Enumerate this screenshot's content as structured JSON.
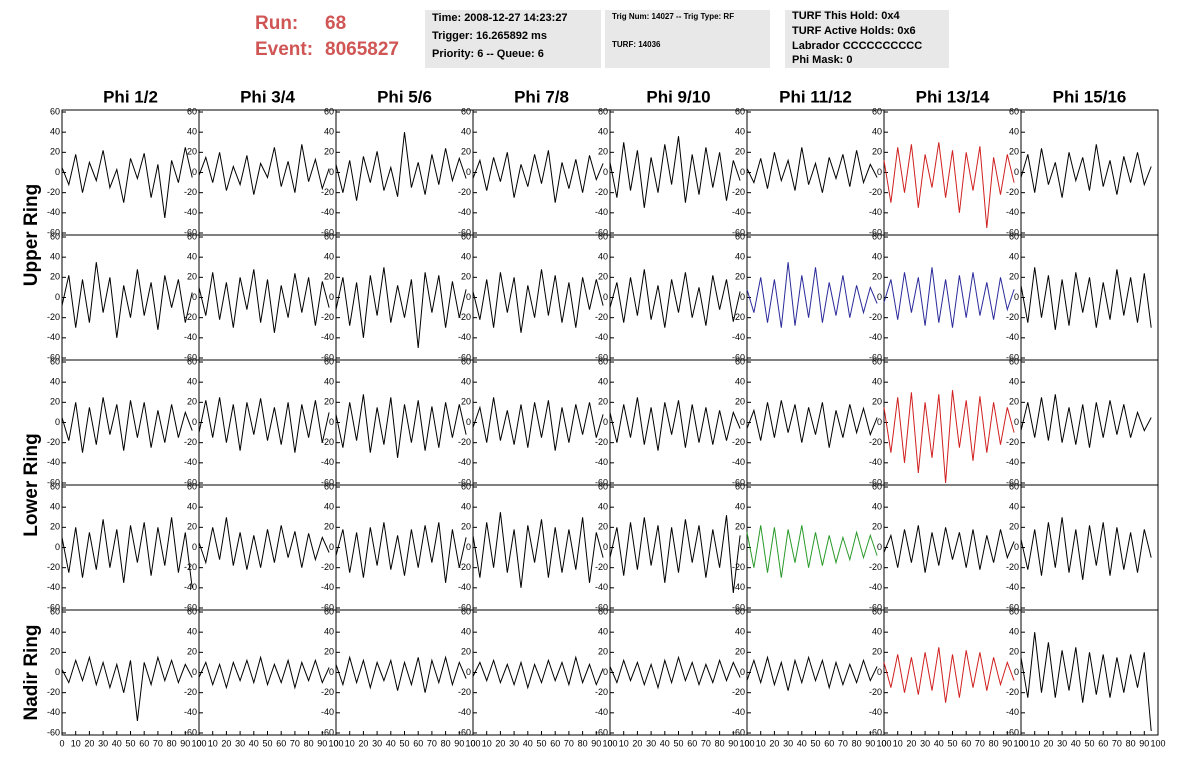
{
  "header": {
    "run_label": "Run:",
    "run": "68",
    "event_label": "Event:",
    "event": "8065827"
  },
  "info_boxes": [
    [
      "Time: 2008-12-27 14:23:27",
      "Trigger: 16.265892 ms",
      "Priority: 6 -- Queue: 6"
    ],
    [
      "Trig Num: 14027 -- Trig Type: RF",
      "TURF: 14036"
    ],
    [
      "TURF This Hold: 0x4",
      "TURF Active Holds: 0x6",
      "Labrador CCCCCCCCCC",
      "Phi Mask: 0"
    ]
  ],
  "columns": [
    "Phi 1/2",
    "Phi 3/4",
    "Phi 5/6",
    "Phi 7/8",
    "Phi 9/10",
    "Phi 11/12",
    "Phi 13/14",
    "Phi 15/16"
  ],
  "ring_labels": [
    "Upper Ring",
    "Lower Ring",
    "Nadir Ring"
  ],
  "axes": {
    "type": "line",
    "x": [
      0,
      5,
      10,
      15,
      20,
      25,
      30,
      35,
      40,
      45,
      50,
      55,
      60,
      65,
      70,
      75,
      80,
      85,
      90,
      95
    ],
    "xlim": [
      0,
      100
    ],
    "xticks": [
      0,
      10,
      20,
      30,
      40,
      50,
      60,
      70,
      80,
      90,
      100
    ],
    "ylim": [
      -62,
      62
    ],
    "yticks": [
      -60,
      -40,
      -20,
      0,
      20,
      40,
      60
    ]
  },
  "rows": [
    {
      "panels": [
        {
          "color": "#000000",
          "values": [
            5,
            -12,
            18,
            -20,
            10,
            -8,
            22,
            -15,
            3,
            -30,
            14,
            -6,
            19,
            -25,
            8,
            -45,
            12,
            -10,
            25,
            -5
          ]
        },
        {
          "color": "#000000",
          "values": [
            -3,
            15,
            -10,
            20,
            -18,
            6,
            -12,
            17,
            -22,
            9,
            -5,
            25,
            -14,
            11,
            -20,
            28,
            -9,
            13,
            -16,
            4
          ]
        },
        {
          "color": "#000000",
          "values": [
            8,
            -20,
            12,
            -28,
            16,
            -10,
            21,
            -18,
            5,
            -24,
            40,
            -15,
            10,
            -22,
            18,
            -12,
            24,
            -8,
            14,
            -6
          ]
        },
        {
          "color": "#000000",
          "values": [
            -6,
            12,
            -18,
            15,
            -9,
            20,
            -25,
            8,
            -14,
            18,
            -11,
            22,
            -30,
            10,
            -16,
            13,
            -20,
            17,
            -7,
            9
          ]
        },
        {
          "color": "#000000",
          "values": [
            10,
            -25,
            30,
            -18,
            22,
            -35,
            15,
            -20,
            28,
            -12,
            36,
            -30,
            18,
            -22,
            25,
            -15,
            20,
            -28,
            12,
            -8
          ]
        },
        {
          "color": "#000000",
          "values": [
            4,
            -10,
            14,
            -16,
            20,
            -8,
            12,
            -18,
            25,
            -12,
            9,
            -20,
            15,
            -6,
            18,
            -14,
            22,
            -10,
            8,
            -5
          ]
        },
        {
          "color": "#d02020",
          "values": [
            12,
            -30,
            25,
            -20,
            28,
            -35,
            18,
            -15,
            30,
            -25,
            22,
            -40,
            20,
            -18,
            26,
            -55,
            15,
            -22,
            18,
            -10
          ]
        },
        {
          "color": "#000000",
          "values": [
            -5,
            18,
            -20,
            24,
            -12,
            10,
            -25,
            20,
            -8,
            15,
            -18,
            28,
            -14,
            12,
            -22,
            16,
            -10,
            20,
            -12,
            6
          ]
        }
      ]
    },
    {
      "panels": [
        {
          "color": "#000000",
          "values": [
            -8,
            22,
            -30,
            18,
            -25,
            35,
            -15,
            20,
            -40,
            12,
            -20,
            28,
            -18,
            15,
            -32,
            22,
            -10,
            18,
            -25,
            5
          ]
        },
        {
          "color": "#000000",
          "values": [
            10,
            -18,
            25,
            -22,
            15,
            -30,
            20,
            -12,
            28,
            -25,
            18,
            -35,
            12,
            -20,
            24,
            -15,
            20,
            -28,
            16,
            -10
          ]
        },
        {
          "color": "#000000",
          "values": [
            -12,
            20,
            -28,
            15,
            -40,
            22,
            -18,
            30,
            -25,
            12,
            -20,
            18,
            -50,
            25,
            -15,
            22,
            -30,
            16,
            -20,
            8
          ]
        },
        {
          "color": "#000000",
          "values": [
            6,
            -22,
            18,
            -30,
            25,
            -15,
            20,
            -35,
            12,
            -20,
            28,
            -18,
            22,
            -25,
            15,
            -30,
            20,
            -12,
            18,
            -8
          ]
        },
        {
          "color": "#000000",
          "values": [
            -10,
            15,
            -25,
            20,
            -18,
            28,
            -22,
            12,
            -30,
            18,
            -15,
            25,
            -20,
            10,
            -28,
            22,
            -12,
            18,
            -24,
            6
          ]
        },
        {
          "color": "#2a2a9a",
          "values": [
            8,
            -15,
            20,
            -25,
            18,
            -30,
            35,
            -28,
            22,
            -20,
            30,
            -25,
            15,
            -18,
            22,
            -20,
            12,
            -15,
            10,
            -6
          ]
        },
        {
          "color": "#2a2a9a",
          "values": [
            -5,
            18,
            -22,
            25,
            -15,
            20,
            -28,
            30,
            -25,
            18,
            -30,
            22,
            -20,
            25,
            -18,
            15,
            -22,
            20,
            -12,
            8
          ]
        },
        {
          "color": "#000000",
          "values": [
            12,
            -25,
            30,
            -20,
            22,
            -32,
            18,
            -28,
            25,
            -15,
            20,
            -30,
            15,
            -22,
            28,
            -18,
            20,
            -25,
            24,
            -30
          ]
        }
      ]
    },
    {
      "panels": [
        {
          "color": "#000000",
          "values": [
            5,
            -18,
            20,
            -30,
            15,
            -22,
            25,
            -12,
            18,
            -28,
            22,
            -15,
            20,
            -25,
            12,
            -20,
            18,
            -15,
            10,
            -8
          ]
        },
        {
          "color": "#000000",
          "values": [
            -10,
            22,
            -15,
            25,
            -20,
            18,
            -28,
            20,
            -12,
            24,
            -18,
            15,
            -22,
            20,
            -30,
            18,
            -15,
            22,
            -20,
            10
          ]
        },
        {
          "color": "#000000",
          "values": [
            8,
            -25,
            20,
            -18,
            28,
            -30,
            15,
            -22,
            25,
            -35,
            18,
            -20,
            22,
            -28,
            16,
            -25,
            20,
            -15,
            18,
            -12
          ]
        },
        {
          "color": "#000000",
          "values": [
            -5,
            15,
            -20,
            25,
            -18,
            12,
            -22,
            18,
            -25,
            20,
            -15,
            22,
            -28,
            15,
            -20,
            18,
            -12,
            20,
            -15,
            8
          ]
        },
        {
          "color": "#000000",
          "values": [
            10,
            -20,
            18,
            -15,
            25,
            -22,
            15,
            -28,
            20,
            -12,
            22,
            -25,
            18,
            -20,
            15,
            -22,
            12,
            -18,
            10,
            -6
          ]
        },
        {
          "color": "#000000",
          "values": [
            -6,
            12,
            -18,
            20,
            -15,
            22,
            -10,
            18,
            -20,
            15,
            -12,
            20,
            -25,
            12,
            -15,
            18,
            -10,
            14,
            -12,
            5
          ]
        },
        {
          "color": "#d02020",
          "values": [
            15,
            -30,
            25,
            -40,
            30,
            -50,
            20,
            -35,
            28,
            -60,
            32,
            -25,
            22,
            -38,
            26,
            -30,
            20,
            -22,
            15,
            -10
          ]
        },
        {
          "color": "#000000",
          "values": [
            -8,
            20,
            -15,
            25,
            -18,
            28,
            -20,
            15,
            -22,
            18,
            -25,
            20,
            -15,
            22,
            -12,
            18,
            -15,
            10,
            -8,
            5
          ]
        }
      ]
    },
    {
      "panels": [
        {
          "color": "#000000",
          "values": [
            10,
            -25,
            20,
            -30,
            15,
            -22,
            28,
            -20,
            18,
            -35,
            22,
            -15,
            25,
            -28,
            20,
            -18,
            30,
            -25,
            15,
            -40
          ]
        },
        {
          "color": "#000000",
          "values": [
            5,
            -15,
            20,
            -12,
            30,
            -18,
            15,
            -22,
            12,
            -20,
            18,
            -15,
            22,
            -10,
            16,
            -20,
            14,
            -12,
            10,
            -5
          ]
        },
        {
          "color": "#000000",
          "values": [
            -8,
            18,
            -25,
            15,
            -30,
            20,
            -18,
            25,
            -22,
            12,
            -28,
            18,
            -20,
            22,
            -15,
            25,
            -35,
            18,
            -20,
            10
          ]
        },
        {
          "color": "#000000",
          "values": [
            12,
            -30,
            25,
            -20,
            35,
            -25,
            18,
            -40,
            22,
            -15,
            28,
            -30,
            20,
            -25,
            18,
            -22,
            30,
            -35,
            15,
            -10
          ]
        },
        {
          "color": "#000000",
          "values": [
            -10,
            20,
            -28,
            25,
            -22,
            30,
            -18,
            22,
            -35,
            20,
            -25,
            28,
            -15,
            22,
            -30,
            18,
            -20,
            32,
            -45,
            12
          ]
        },
        {
          "color": "#2a9a2a",
          "values": [
            15,
            -20,
            22,
            -25,
            20,
            -30,
            18,
            -15,
            22,
            -20,
            15,
            -18,
            12,
            -15,
            10,
            -12,
            15,
            -10,
            12,
            -8
          ]
        },
        {
          "color": "#000000",
          "values": [
            -5,
            12,
            -20,
            18,
            -15,
            22,
            -25,
            15,
            -18,
            20,
            -12,
            15,
            -20,
            18,
            -22,
            12,
            -15,
            18,
            -10,
            6
          ]
        },
        {
          "color": "#000000",
          "values": [
            8,
            -22,
            18,
            -28,
            25,
            -20,
            30,
            -25,
            18,
            -32,
            22,
            -18,
            25,
            -28,
            20,
            -22,
            15,
            -25,
            18,
            -10
          ]
        }
      ]
    },
    {
      "panels": [
        {
          "color": "#000000",
          "values": [
            3,
            -10,
            12,
            -8,
            15,
            -12,
            10,
            -15,
            8,
            -20,
            12,
            -48,
            10,
            -12,
            15,
            -8,
            12,
            -10,
            8,
            -5
          ]
        },
        {
          "color": "#000000",
          "values": [
            -5,
            10,
            -12,
            8,
            -15,
            10,
            -8,
            12,
            -10,
            15,
            -12,
            8,
            -10,
            12,
            -15,
            10,
            -8,
            12,
            -10,
            5
          ]
        },
        {
          "color": "#000000",
          "values": [
            8,
            -12,
            15,
            -10,
            12,
            -15,
            10,
            -8,
            12,
            -18,
            10,
            -12,
            15,
            -20,
            12,
            -10,
            15,
            -12,
            10,
            -6
          ]
        },
        {
          "color": "#000000",
          "values": [
            -4,
            10,
            -8,
            12,
            -10,
            8,
            -12,
            10,
            -15,
            8,
            -10,
            12,
            -8,
            10,
            -12,
            15,
            -10,
            8,
            -12,
            4
          ]
        },
        {
          "color": "#000000",
          "values": [
            6,
            -10,
            12,
            -8,
            10,
            -12,
            8,
            -15,
            12,
            -10,
            15,
            -8,
            10,
            -12,
            8,
            -10,
            12,
            -8,
            10,
            -5
          ]
        },
        {
          "color": "#000000",
          "values": [
            -8,
            12,
            -10,
            15,
            -12,
            10,
            -18,
            12,
            -10,
            15,
            -8,
            12,
            -15,
            10,
            -12,
            8,
            -10,
            12,
            -8,
            6
          ]
        },
        {
          "color": "#d02020",
          "values": [
            10,
            -15,
            18,
            -20,
            15,
            -22,
            20,
            -18,
            25,
            -30,
            18,
            -25,
            22,
            -15,
            20,
            -18,
            15,
            -12,
            10,
            -8
          ]
        },
        {
          "color": "#000000",
          "values": [
            15,
            -25,
            40,
            -20,
            30,
            -25,
            22,
            -18,
            25,
            -30,
            20,
            -22,
            18,
            -25,
            15,
            -20,
            18,
            -15,
            20,
            -58
          ]
        }
      ]
    }
  ]
}
